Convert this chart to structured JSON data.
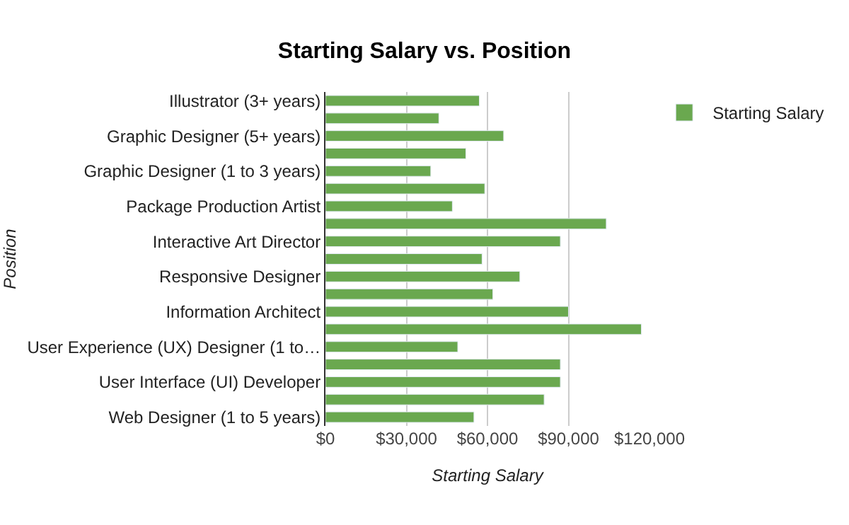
{
  "chart_data": {
    "type": "bar",
    "orientation": "horizontal",
    "title": "Starting Salary vs. Position",
    "xlabel": "Starting Salary",
    "ylabel": "Position",
    "categories": [
      "Illustrator (3+ years)",
      null,
      "Graphic Designer (5+ years)",
      null,
      "Graphic Designer (1 to 3 years)",
      null,
      "Package Production Artist",
      null,
      "Interactive Art Director",
      null,
      "Responsive Designer",
      null,
      "Information Architect",
      null,
      "User Experience (UX) Designer (1 to…",
      null,
      "User Interface (UI) Developer",
      null,
      "Web Designer (1 to 5 years)"
    ],
    "series": [
      {
        "name": "Starting Salary",
        "color": "#6aa84f",
        "values": [
          57000,
          42000,
          66000,
          52000,
          39000,
          59000,
          47000,
          104000,
          87000,
          58000,
          72000,
          62000,
          90000,
          117000,
          49000,
          87000,
          87000,
          81000,
          55000
        ]
      }
    ],
    "xlim": [
      0,
      120000
    ],
    "xticks": [
      {
        "value": 0,
        "label": "$0"
      },
      {
        "value": 30000,
        "label": "$30,000"
      },
      {
        "value": 60000,
        "label": "$60,000"
      },
      {
        "value": 90000,
        "label": "$90,000"
      },
      {
        "value": 120000,
        "label": "$120,000"
      }
    ],
    "grid": "x",
    "legend": "top right"
  }
}
